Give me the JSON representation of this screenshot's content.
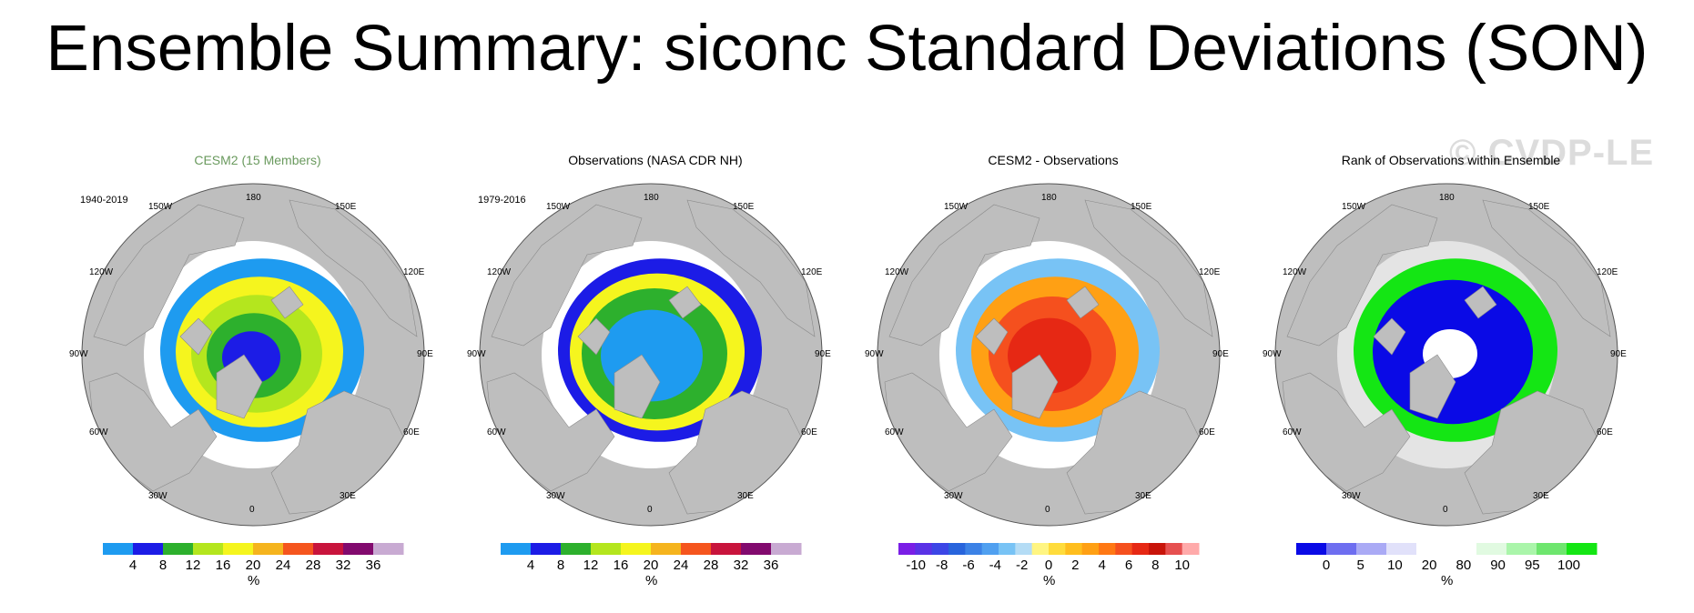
{
  "title": "Ensemble Summary: siconc Standard Deviations (SON)",
  "watermark": "© CVDP-LE",
  "lon_labels": {
    "n": "180",
    "s": "0",
    "e": "90E",
    "w": "90W",
    "ne1": "150E",
    "ne2": "120E",
    "se1": "60E",
    "se2": "30E",
    "nw1": "150W",
    "nw2": "120W",
    "sw1": "60W",
    "sw2": "30W"
  },
  "colors": {
    "land": "#bebebe",
    "ocean": "#ffffff",
    "outline": "#555555"
  },
  "panels": [
    {
      "title": "CESM2 (15 Members)",
      "title_color": "#6a9a5e",
      "period": "1940-2019",
      "unit": "%",
      "colorbar": {
        "colors": [
          "#1e9bf0",
          "#1c1ce6",
          "#2db02d",
          "#b4e61e",
          "#f5f51e",
          "#f5b41e",
          "#f5551e",
          "#c8143c",
          "#820a6e",
          "#c8aad2"
        ],
        "tick_labels": [
          "4",
          "8",
          "12",
          "16",
          "20",
          "24",
          "28",
          "32",
          "36"
        ]
      },
      "pattern": [
        {
          "c": "#1e9bf0",
          "r": 112
        },
        {
          "c": "#f5f51e",
          "r": 92
        },
        {
          "c": "#b4e61e",
          "r": 72
        },
        {
          "c": "#2db02d",
          "r": 52
        },
        {
          "c": "#1c1ce6",
          "r": 32
        }
      ]
    },
    {
      "title": "Observations (NASA CDR NH)",
      "title_color": "#000000",
      "period": "1979-2016",
      "unit": "%",
      "colorbar": {
        "colors": [
          "#1e9bf0",
          "#1c1ce6",
          "#2db02d",
          "#b4e61e",
          "#f5f51e",
          "#f5b41e",
          "#f5551e",
          "#c8143c",
          "#820a6e",
          "#c8aad2"
        ],
        "tick_labels": [
          "4",
          "8",
          "12",
          "16",
          "20",
          "24",
          "28",
          "32",
          "36"
        ]
      },
      "pattern": [
        {
          "c": "#1c1ce6",
          "r": 112
        },
        {
          "c": "#f5f51e",
          "r": 96
        },
        {
          "c": "#2db02d",
          "r": 80
        },
        {
          "c": "#1e9bf0",
          "r": 56
        }
      ]
    },
    {
      "title": "CESM2 - Observations",
      "title_color": "#000000",
      "period": "",
      "unit": "%",
      "colorbar": {
        "colors": [
          "#7a1ee6",
          "#5a32e6",
          "#3c46e6",
          "#2864dc",
          "#3c82e6",
          "#50a0f0",
          "#78c3f5",
          "#b4dcf5",
          "#fff582",
          "#ffdc3c",
          "#ffbe1e",
          "#ffa014",
          "#ff7814",
          "#f5501e",
          "#e62814",
          "#c8140a",
          "#e65050",
          "#ffaaaa"
        ],
        "tick_labels": [
          "-10",
          "-8",
          "-6",
          "-4",
          "-2",
          "0",
          "2",
          "4",
          "6",
          "8",
          "10"
        ]
      },
      "pattern": [
        {
          "c": "#78c3f5",
          "r": 112
        },
        {
          "c": "#ffa014",
          "r": 92
        },
        {
          "c": "#f5501e",
          "r": 70
        },
        {
          "c": "#e62814",
          "r": 46
        }
      ]
    },
    {
      "title": "Rank of Observations within Ensemble",
      "title_color": "#000000",
      "period": "",
      "unit": "%",
      "colorbar": {
        "colors": [
          "#0a0ae6",
          "#6e6ef0",
          "#aaaaf5",
          "#e1e1fa",
          "#ffffff",
          "#ffffff",
          "#e1fae1",
          "#aaf5aa",
          "#6ee66e",
          "#14e614"
        ],
        "tick_labels": [
          "0",
          "5",
          "10",
          "20",
          "80",
          "90",
          "95",
          "100"
        ]
      },
      "pattern": [
        {
          "c": "#14e614",
          "r": 112
        },
        {
          "c": "#0a0ae6",
          "r": 88
        },
        {
          "c": "#ffffff",
          "r": 30
        }
      ]
    }
  ]
}
